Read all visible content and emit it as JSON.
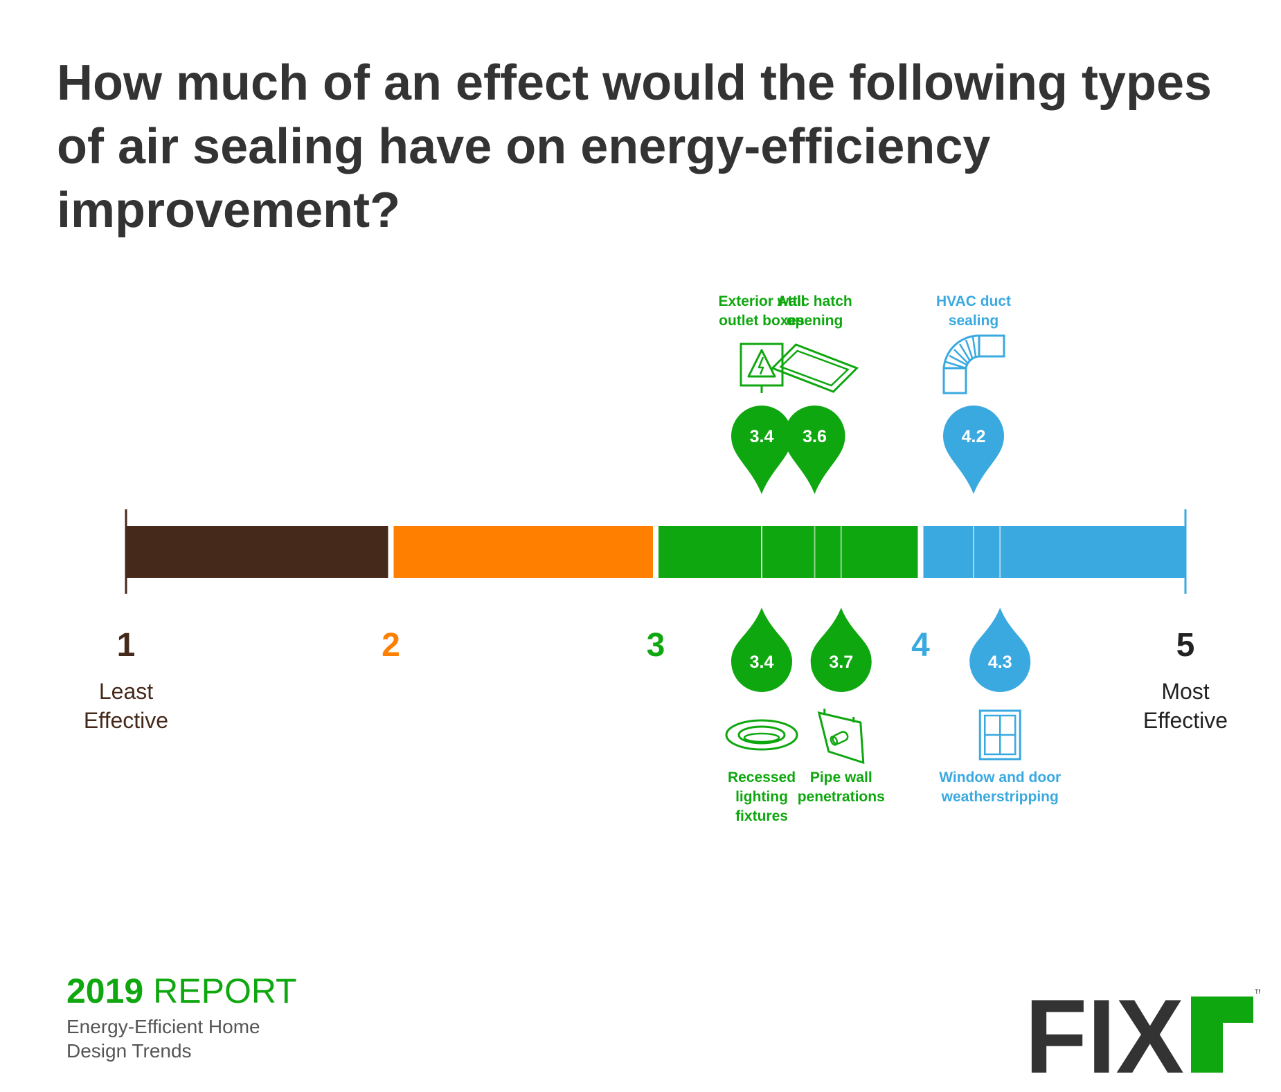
{
  "title": "How much of an effect would the following types of air sealing have on energy-efficiency improvement?",
  "colors": {
    "brown": "#45291a",
    "orange": "#ff7f00",
    "green": "#0fa70f",
    "blue": "#3aa9e0",
    "dark": "#333333"
  },
  "chart_data": {
    "type": "scale",
    "xlim": [
      1,
      5
    ],
    "ticks": [
      {
        "value": 1,
        "label": "1",
        "color": "#45291a"
      },
      {
        "value": 2,
        "label": "2",
        "color": "#ff7f00"
      },
      {
        "value": 3,
        "label": "3",
        "color": "#0fa70f"
      },
      {
        "value": 4,
        "label": "4",
        "color": "#3aa9e0"
      },
      {
        "value": 5,
        "label": "5",
        "color": "#222222"
      }
    ],
    "segments": [
      {
        "from": 1,
        "to": 2,
        "color": "#45291a"
      },
      {
        "from": 2,
        "to": 3,
        "color": "#ff7f00"
      },
      {
        "from": 3,
        "to": 4,
        "color": "#0fa70f"
      },
      {
        "from": 4,
        "to": 5,
        "color": "#3aa9e0"
      }
    ],
    "end_labels": {
      "min": [
        "Least",
        "Effective"
      ],
      "max": [
        "Most",
        "Effective"
      ]
    },
    "points": [
      {
        "label": "Exterior wall outlet boxes",
        "label_lines": [
          "Exterior wall",
          "outlet boxes"
        ],
        "value": 3.4,
        "value_label": "3.4",
        "side": "top",
        "icon": "electrical-outlet-box-icon",
        "color": "#0fa70f"
      },
      {
        "label": "Attic hatch opening",
        "label_lines": [
          "Attic hatch",
          "opening"
        ],
        "value": 3.6,
        "value_label": "3.6",
        "side": "top",
        "icon": "attic-hatch-icon",
        "color": "#0fa70f"
      },
      {
        "label": "HVAC duct sealing",
        "label_lines": [
          "HVAC duct",
          "sealing"
        ],
        "value": 4.2,
        "value_label": "4.2",
        "side": "top",
        "icon": "hvac-duct-icon",
        "color": "#3aa9e0"
      },
      {
        "label": "Recessed lighting fixtures",
        "label_lines": [
          "Recessed",
          "lighting",
          "fixtures"
        ],
        "value": 3.4,
        "value_label": "3.4",
        "side": "bottom",
        "icon": "recessed-light-icon",
        "color": "#0fa70f"
      },
      {
        "label": "Pipe wall penetrations",
        "label_lines": [
          "Pipe wall",
          "penetrations"
        ],
        "value": 3.7,
        "value_label": "3.7",
        "side": "bottom",
        "icon": "pipe-wall-icon",
        "color": "#0fa70f"
      },
      {
        "label": "Window and door weatherstripping",
        "label_lines": [
          "Window and door",
          "weatherstripping"
        ],
        "value": 4.3,
        "value_label": "4.3",
        "side": "bottom",
        "icon": "window-icon",
        "color": "#3aa9e0"
      }
    ]
  },
  "footer": {
    "report_year": "2019",
    "report_word": "REPORT",
    "subtitle": "Energy-Efficient Home\nDesign Trends"
  },
  "logo": {
    "text": "FIXR",
    "tm": "TM"
  }
}
